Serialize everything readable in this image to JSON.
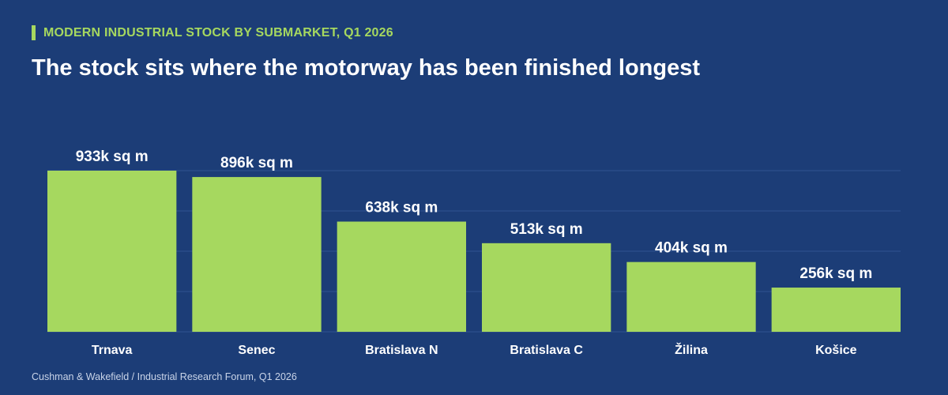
{
  "header": {
    "kicker": "MODERN INDUSTRIAL STOCK BY SUBMARKET, Q1 2026",
    "title": "The stock sits where the motorway has been finished longest"
  },
  "source": "Cushman & Wakefield / Industrial Research Forum, Q1 2026",
  "colors": {
    "background": "#1c3d77",
    "bar": "#a6d85f",
    "accent": "#a6d85f",
    "grid": "#2f5390",
    "text": "#ffffff"
  },
  "chart_data": {
    "type": "bar",
    "categories": [
      "Trnava",
      "Senec",
      "Bratislava N",
      "Bratislava C",
      "Žilina",
      "Košice"
    ],
    "values": [
      933,
      896,
      638,
      513,
      404,
      256
    ],
    "value_labels": [
      "933k sq m",
      "896k sq m",
      "638k sq m",
      "513k sq m",
      "404k sq m",
      "256k sq m"
    ],
    "unit": "k sq m",
    "ylim": [
      0,
      933
    ],
    "grid": true,
    "title": "",
    "xlabel": "",
    "ylabel": ""
  }
}
